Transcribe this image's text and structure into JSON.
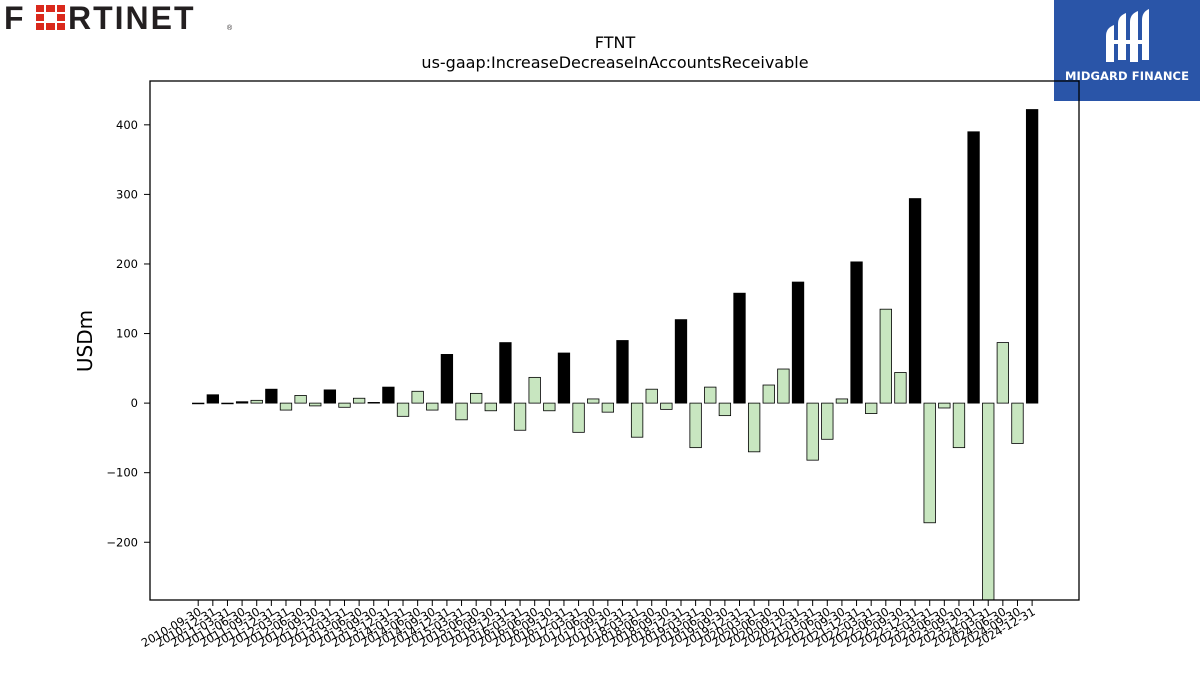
{
  "logos": {
    "left_brand": "FORTINET",
    "right_brand": "MIDGARD FINANCE"
  },
  "chart_data": {
    "type": "bar",
    "title": "FTNT",
    "subtitle": "us-gaap:IncreaseDecreaseInAccountsReceivable",
    "xlabel": "",
    "ylabel": "USDm",
    "ylim": [
      -283,
      463
    ],
    "yticks": [
      -200,
      -100,
      0,
      100,
      200,
      300,
      400
    ],
    "grid": false,
    "colors": {
      "annual": "#000000",
      "quarterly": "#c8e6c0",
      "edge": "#000000"
    },
    "categories": [
      "2010-09-30",
      "2010-12-31",
      "2011-03-31",
      "2011-06-30",
      "2011-09-30",
      "2011-12-31",
      "2012-03-31",
      "2012-06-30",
      "2012-09-30",
      "2012-12-31",
      "2013-03-31",
      "2013-06-30",
      "2013-09-30",
      "2013-12-31",
      "2014-03-31",
      "2014-06-30",
      "2014-09-30",
      "2014-12-31",
      "2015-03-31",
      "2015-06-30",
      "2015-09-30",
      "2015-12-31",
      "2016-03-31",
      "2016-06-30",
      "2016-09-30",
      "2016-12-31",
      "2017-03-31",
      "2017-06-30",
      "2017-09-30",
      "2017-12-31",
      "2018-03-31",
      "2018-06-30",
      "2018-09-30",
      "2018-12-31",
      "2019-03-31",
      "2019-06-30",
      "2019-09-30",
      "2019-12-31",
      "2020-03-31",
      "2020-06-30",
      "2020-09-30",
      "2020-12-31",
      "2021-03-31",
      "2021-06-30",
      "2021-09-30",
      "2021-12-31",
      "2022-03-31",
      "2022-06-30",
      "2022-09-30",
      "2022-12-31",
      "2023-03-31",
      "2023-06-30",
      "2023-09-30",
      "2023-12-31",
      "2024-03-31",
      "2024-06-30",
      "2024-09-30",
      "2024-12-31"
    ],
    "xtick_labels": [
      "2010-09-30",
      "2010-12-31",
      "2011-03-31",
      "2011-06-30",
      "2011-09-30",
      "2011-12-31",
      "2012-03-31",
      "2012-06-30",
      "2012-09-30",
      "2012-12-31",
      "2013-03-31",
      "2013-06-30",
      "2013-09-30",
      "2013-12-31",
      "2014-03-31",
      "2014-06-30",
      "2014-09-30",
      "2014-12-31",
      "2015-03-31",
      "2015-06-30",
      "2015-09-30",
      "2015-12-31",
      "2016-03-31",
      "2016-06-30",
      "2016-09-30",
      "2016-12-31",
      "2017-03-31",
      "2017-06-30",
      "2017-09-30",
      "2017-12-31",
      "2018-03-31",
      "2018-06-30",
      "2018-09-30",
      "2018-12-31",
      "2019-03-31",
      "2019-06-30",
      "2019-09-30",
      "2019-12-31",
      "2020-03-31",
      "2020-06-30",
      "2020-09-30",
      "2020-12-31",
      "2021-03-31",
      "2021-06-30",
      "2021-09-30",
      "2021-12-31",
      "2022-03-31",
      "2022-06-30",
      "2022-09-30",
      "2022-12-31",
      "2023-03-31",
      "2023-06-30",
      "2023-09-30",
      "2023-12-31",
      "2024-03-31",
      "2024-06-30",
      "2024-09-30",
      "2024-12-31"
    ],
    "values": [
      -1,
      12,
      -1,
      2,
      4,
      20,
      -10,
      11,
      -4,
      19,
      -6,
      7,
      1,
      23,
      -19,
      17,
      -10,
      70,
      -24,
      14,
      -11,
      87,
      -39,
      37,
      -11,
      72,
      -42,
      6,
      -13,
      90,
      -49,
      20,
      -9,
      120,
      -64,
      23,
      -18,
      158,
      -70,
      26,
      49,
      174,
      -82,
      -52,
      6,
      203,
      -15,
      135,
      44,
      294,
      -172,
      -7,
      -64,
      390,
      -283,
      87,
      -58,
      422
    ],
    "annual": [
      false,
      true,
      false,
      true,
      false,
      true,
      false,
      false,
      false,
      true,
      false,
      false,
      false,
      true,
      false,
      false,
      false,
      true,
      false,
      false,
      false,
      true,
      false,
      false,
      false,
      true,
      false,
      false,
      false,
      true,
      false,
      false,
      false,
      true,
      false,
      false,
      false,
      true,
      false,
      false,
      false,
      true,
      false,
      false,
      false,
      true,
      false,
      false,
      false,
      true,
      false,
      false,
      false,
      true,
      false,
      false,
      false,
      true
    ]
  }
}
